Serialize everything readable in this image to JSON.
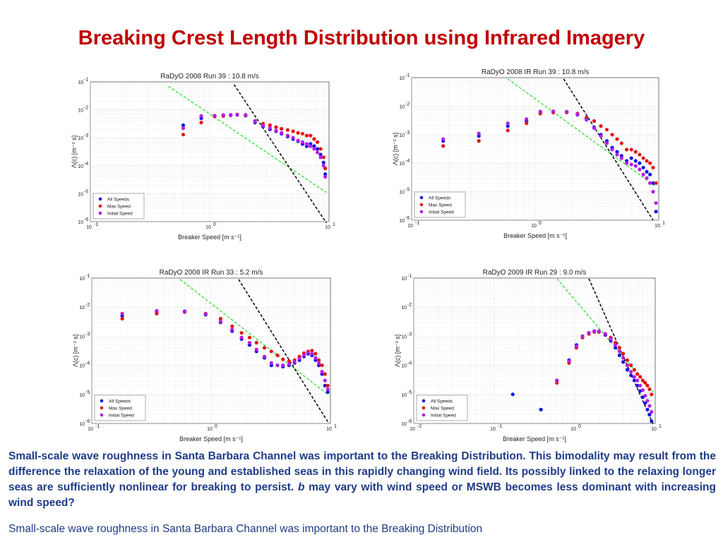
{
  "slide": {
    "title": "Breaking Crest Length Distribution using Infrared Imagery",
    "body_before": "Small-scale wave roughness in Santa Barbara Channel was important to the Breaking Distribution. This bimodality may result from the difference the relaxation of the young and established seas in this rapidly changing wind field.  Its possibly linked to the relaxing longer seas are sufficiently nonlinear for breaking to persist. ",
    "body_italic": "b",
    "body_after": " may vary with wind speed or MSWB becomes less dominant with increasing wind speed?",
    "footer": "Small-scale wave roughness in Santa Barbara Channel was important to the Breaking Distribution"
  },
  "colors": {
    "title": "#c00000",
    "body_text": "#1f3c88",
    "all_speeds": "#1414e6",
    "max_speed": "#e61414",
    "initial_speed": "#b41ee6",
    "reference_green": "#22dd22",
    "reference_black": "#111111"
  },
  "chart_data": [
    {
      "type": "scatter",
      "title": "RaDyO 2008 Run 39 :  10.8 m/s",
      "xlabel": "Breaker Speed [m s⁻¹]",
      "ylabel": "Λ(c) [m⁻² s]",
      "xscale": "log",
      "yscale": "log",
      "xlim": [
        0.1,
        10
      ],
      "ylim": [
        1e-06,
        0.1
      ],
      "xticks": [
        "10",
        "10",
        "10"
      ],
      "xtick_exps": [
        "-1",
        "0",
        "1"
      ],
      "yticks": [
        "10",
        "10",
        "10",
        "10",
        "10",
        "10"
      ],
      "ytick_exps": [
        "-1",
        "-2",
        "-3",
        "-4",
        "-5",
        "-6"
      ],
      "grid": true,
      "legend_position": "bottom-left",
      "series": [
        {
          "name": "All Speeds",
          "x": [
            0.6,
            0.85,
            1.1,
            1.3,
            1.5,
            1.7,
            2.0,
            2.4,
            2.8,
            3.2,
            3.6,
            4.0,
            4.5,
            5.0,
            5.5,
            6.0,
            6.5,
            7.0,
            7.5,
            8.0,
            8.5,
            9.0,
            9.3
          ],
          "y": [
            0.0028,
            0.005,
            0.006,
            0.0062,
            0.0064,
            0.0066,
            0.0062,
            0.0035,
            0.0025,
            0.002,
            0.0017,
            0.0014,
            0.0011,
            0.0009,
            0.00075,
            0.0006,
            0.0005,
            0.0006,
            0.0005,
            0.0004,
            0.00025,
            0.00013,
            5e-05
          ]
        },
        {
          "name": "Max Speed",
          "x": [
            0.6,
            0.85,
            1.1,
            1.3,
            1.5,
            1.7,
            2.0,
            2.4,
            2.8,
            3.2,
            3.6,
            4.0,
            4.5,
            5.0,
            5.5,
            6.0,
            6.5,
            7.0,
            7.5,
            8.0,
            8.5,
            9.0,
            9.3
          ],
          "y": [
            0.0013,
            0.0035,
            0.0058,
            0.006,
            0.0065,
            0.0068,
            0.0064,
            0.004,
            0.0032,
            0.0028,
            0.0024,
            0.0021,
            0.0019,
            0.0017,
            0.0015,
            0.0014,
            0.0012,
            0.0012,
            0.0009,
            0.0007,
            0.0004,
            0.0002,
            8e-05
          ]
        },
        {
          "name": "Initial Speed",
          "x": [
            0.6,
            0.85,
            1.1,
            1.3,
            1.5,
            1.7,
            2.0,
            2.4,
            2.8,
            3.2,
            3.6,
            4.0,
            4.5,
            5.0,
            5.5,
            6.0,
            6.5,
            7.0,
            7.5,
            8.0,
            8.5,
            9.0,
            9.3
          ],
          "y": [
            0.0022,
            0.006,
            0.0062,
            0.0065,
            0.0066,
            0.0067,
            0.0066,
            0.0038,
            0.0027,
            0.0022,
            0.0018,
            0.0015,
            0.0012,
            0.001,
            0.0008,
            0.0007,
            0.0006,
            0.0005,
            0.0004,
            0.0003,
            0.0002,
            0.0001,
            4e-05
          ]
        }
      ],
      "reference_lines": [
        {
          "color": "green",
          "x": [
            0.45,
            9.5
          ],
          "y": [
            0.07,
            1.1e-05
          ]
        },
        {
          "color": "black",
          "x": [
            1.6,
            9.5
          ],
          "y": [
            0.08,
            9e-07
          ]
        }
      ]
    },
    {
      "type": "scatter",
      "title": "RaDyO 2008 IR Run 39 :  10.8 m/s",
      "xlabel": "Breaker Speed [m s⁻¹]",
      "ylabel": "Λ(c) [m⁻² s]",
      "xscale": "log",
      "yscale": "log",
      "xlim": [
        0.1,
        10
      ],
      "ylim": [
        1e-06,
        0.1
      ],
      "xticks": [
        "10",
        "10",
        "10"
      ],
      "xtick_exps": [
        "-1",
        "0",
        "1"
      ],
      "yticks": [
        "10",
        "10",
        "10",
        "10",
        "10",
        "10"
      ],
      "ytick_exps": [
        "-1",
        "-2",
        "-3",
        "-4",
        "-5",
        "-6"
      ],
      "grid": true,
      "legend_position": "bottom-left",
      "series": [
        {
          "name": "All Speeds",
          "x": [
            0.18,
            0.35,
            0.6,
            0.85,
            1.1,
            1.4,
            1.8,
            2.2,
            2.6,
            3.0,
            3.4,
            3.8,
            4.2,
            4.6,
            5.0,
            5.5,
            6.0,
            6.5,
            7.0,
            7.5,
            8.0,
            8.5,
            9.0,
            9.5
          ],
          "y": [
            0.0006,
            0.0009,
            0.002,
            0.003,
            0.006,
            0.0065,
            0.0062,
            0.005,
            0.0035,
            0.0018,
            0.001,
            0.0006,
            0.00035,
            0.00025,
            0.00018,
            0.00012,
            0.00015,
            0.00012,
            0.0001,
            7e-05,
            5e-05,
            4e-05,
            2e-05,
            2e-06
          ]
        },
        {
          "name": "Max Speed",
          "x": [
            0.18,
            0.35,
            0.6,
            0.85,
            1.1,
            1.4,
            1.8,
            2.2,
            2.6,
            3.0,
            3.4,
            3.8,
            4.2,
            4.6,
            5.0,
            5.5,
            6.0,
            6.5,
            7.0,
            7.5,
            8.0,
            8.5,
            9.0,
            9.5
          ],
          "y": [
            0.0004,
            0.0006,
            0.0014,
            0.0025,
            0.0055,
            0.006,
            0.006,
            0.0055,
            0.004,
            0.003,
            0.002,
            0.0015,
            0.001,
            0.0007,
            0.0005,
            0.0003,
            0.0003,
            0.00025,
            0.0002,
            0.00015,
            0.00012,
            0.0001,
            7e-05,
            2e-05
          ]
        },
        {
          "name": "Initial Speed",
          "x": [
            0.18,
            0.35,
            0.6,
            0.85,
            1.1,
            1.4,
            1.8,
            2.2,
            2.6,
            3.0,
            3.4,
            3.8,
            4.2,
            4.6,
            5.0,
            5.5,
            6.0,
            6.5,
            7.0,
            7.5,
            8.0,
            8.5,
            9.0,
            9.5
          ],
          "y": [
            0.0007,
            0.0011,
            0.0025,
            0.0035,
            0.0065,
            0.0066,
            0.0064,
            0.0052,
            0.0033,
            0.0017,
            0.0009,
            0.0005,
            0.0003,
            0.0002,
            0.00015,
            0.0001,
            9e-05,
            8e-05,
            6e-05,
            4e-05,
            3e-05,
            2e-05,
            1e-05,
            4e-06
          ]
        }
      ],
      "reference_lines": [
        {
          "color": "green",
          "x": [
            0.6,
            9.5
          ],
          "y": [
            0.09,
            1.5e-05
          ]
        },
        {
          "color": "black",
          "x": [
            1.7,
            9.0
          ],
          "y": [
            0.09,
            1e-06
          ]
        }
      ]
    },
    {
      "type": "scatter",
      "title": "RaDyO 2008 IR Run 33 :  5.2 m/s",
      "xlabel": "Breaker Speed [m s⁻¹]",
      "ylabel": "Λ(c) [m⁻² s]",
      "xscale": "log",
      "yscale": "log",
      "xlim": [
        0.1,
        10
      ],
      "ylim": [
        1e-06,
        0.1
      ],
      "xticks": [
        "10",
        "10",
        "10"
      ],
      "xtick_exps": [
        "-1",
        "0",
        "1"
      ],
      "yticks": [
        "10",
        "10",
        "10",
        "10",
        "10",
        "10"
      ],
      "ytick_exps": [
        "-1",
        "-2",
        "-3",
        "-4",
        "-5",
        "-6"
      ],
      "grid": true,
      "legend_position": "bottom-left",
      "series": [
        {
          "name": "All Speeds",
          "x": [
            0.18,
            0.35,
            0.6,
            0.9,
            1.2,
            1.5,
            1.8,
            2.1,
            2.4,
            2.8,
            3.2,
            3.6,
            4.0,
            4.5,
            5.0,
            5.5,
            6.0,
            6.5,
            7.0,
            7.5,
            8.0,
            8.5,
            9.0,
            9.5
          ],
          "y": [
            0.005,
            0.007,
            0.0072,
            0.0055,
            0.003,
            0.0015,
            0.0008,
            0.0005,
            0.0003,
            0.00018,
            0.0001,
            0.0001,
            9e-05,
            0.0001,
            0.00012,
            0.00015,
            0.0002,
            0.00025,
            0.00022,
            0.00015,
            0.0001,
            5e-05,
            2e-05,
            1.2e-05
          ]
        },
        {
          "name": "Max Speed",
          "x": [
            0.18,
            0.35,
            0.6,
            0.9,
            1.2,
            1.5,
            1.8,
            2.1,
            2.4,
            2.8,
            3.2,
            3.6,
            4.0,
            4.5,
            5.0,
            5.5,
            6.0,
            6.5,
            7.0,
            7.5,
            8.0,
            8.5,
            9.0,
            9.5
          ],
          "y": [
            0.004,
            0.006,
            0.0068,
            0.006,
            0.004,
            0.0022,
            0.0013,
            0.0009,
            0.0006,
            0.0004,
            0.0003,
            0.00022,
            0.00016,
            0.00014,
            0.00015,
            0.0002,
            0.00026,
            0.0003,
            0.00032,
            0.00025,
            0.00015,
            0.0001,
            5e-05,
            2e-05
          ]
        },
        {
          "name": "Initial Speed",
          "x": [
            0.18,
            0.35,
            0.6,
            0.9,
            1.2,
            1.5,
            1.8,
            2.1,
            2.4,
            2.8,
            3.2,
            3.6,
            4.0,
            4.5,
            5.0,
            5.5,
            6.0,
            6.5,
            7.0,
            7.5,
            8.0,
            8.5,
            9.0,
            9.5
          ],
          "y": [
            0.006,
            0.0075,
            0.007,
            0.0058,
            0.0032,
            0.0017,
            0.0009,
            0.0006,
            0.00035,
            0.0002,
            0.00012,
            0.0001,
            0.0001,
            0.00011,
            0.00013,
            0.00017,
            0.00022,
            0.00028,
            0.00025,
            0.00018,
            0.00012,
            6e-05,
            3e-05,
            1.5e-05
          ]
        }
      ],
      "reference_lines": [
        {
          "color": "green",
          "x": [
            0.55,
            9.5
          ],
          "y": [
            0.09,
            1e-05
          ]
        },
        {
          "color": "black",
          "x": [
            1.7,
            9.7
          ],
          "y": [
            0.09,
            1e-06
          ]
        }
      ]
    },
    {
      "type": "scatter",
      "title": "RaDyO 2009 IR Run 29 :  9.0 m/s",
      "xlabel": "Breaker Speed [m s⁻¹]",
      "ylabel": "Λ(c) [m⁻² s]",
      "xscale": "log",
      "yscale": "log",
      "xlim": [
        0.01,
        10
      ],
      "ylim": [
        1e-06,
        0.1
      ],
      "xticks": [
        "10",
        "10",
        "10",
        "10"
      ],
      "xtick_exps": [
        "-2",
        "-1",
        "0",
        "1"
      ],
      "yticks": [
        "10",
        "10",
        "10",
        "10",
        "10",
        "10"
      ],
      "ytick_exps": [
        "-1",
        "-2",
        "-3",
        "-4",
        "-5",
        "-6"
      ],
      "grid": true,
      "legend_position": "bottom-left",
      "series": [
        {
          "name": "All Speeds",
          "x": [
            0.17,
            0.38,
            0.6,
            0.85,
            1.05,
            1.25,
            1.5,
            1.75,
            2.0,
            2.4,
            2.8,
            3.2,
            3.6,
            4.0,
            4.5,
            5.0,
            5.5,
            6.0,
            6.5,
            7.0,
            7.5,
            8.0,
            8.5,
            9.0
          ],
          "y": [
            1e-05,
            3e-06,
            3e-05,
            0.00015,
            0.0005,
            0.001,
            0.0013,
            0.0015,
            0.0014,
            0.0011,
            0.0007,
            0.0004,
            0.00022,
            0.00013,
            7e-05,
            4.5e-05,
            3e-05,
            2e-05,
            1.3e-05,
            8e-06,
            5e-06,
            3e-06,
            2e-06,
            1.2e-06
          ]
        },
        {
          "name": "Max Speed",
          "x": [
            0.6,
            0.85,
            1.05,
            1.25,
            1.5,
            1.75,
            2.0,
            2.4,
            2.8,
            3.2,
            3.6,
            4.0,
            4.5,
            5.0,
            5.5,
            6.0,
            6.5,
            7.0,
            7.5,
            8.0,
            8.5,
            9.0
          ],
          "y": [
            2.5e-05,
            0.00012,
            0.0004,
            0.0009,
            0.0012,
            0.0014,
            0.0014,
            0.0012,
            0.0009,
            0.0006,
            0.0004,
            0.00025,
            0.00015,
            0.0001,
            7e-05,
            5e-05,
            4e-05,
            3e-05,
            2.5e-05,
            2e-05,
            1.5e-05,
            1e-05
          ]
        },
        {
          "name": "Initial Speed",
          "x": [
            0.6,
            0.85,
            1.05,
            1.25,
            1.5,
            1.75,
            2.0,
            2.4,
            2.8,
            3.2,
            3.6,
            4.0,
            4.5,
            5.0,
            5.5,
            6.0,
            6.5,
            7.0,
            7.5,
            8.0,
            8.5,
            9.0
          ],
          "y": [
            3e-05,
            0.00014,
            0.00045,
            0.001,
            0.0013,
            0.0015,
            0.0015,
            0.0012,
            0.0008,
            0.0005,
            0.0003,
            0.00018,
            0.0001,
            6e-05,
            4e-05,
            3e-05,
            2e-05,
            1.4e-05,
            9e-06,
            6e-06,
            4e-06,
            2.5e-06
          ]
        }
      ],
      "reference_lines": [
        {
          "color": "green",
          "x": [
            0.6,
            9.5
          ],
          "y": [
            0.095,
            1.2e-05
          ]
        },
        {
          "color": "black",
          "x": [
            1.5,
            9.5
          ],
          "y": [
            0.095,
            9e-07
          ]
        }
      ]
    }
  ]
}
